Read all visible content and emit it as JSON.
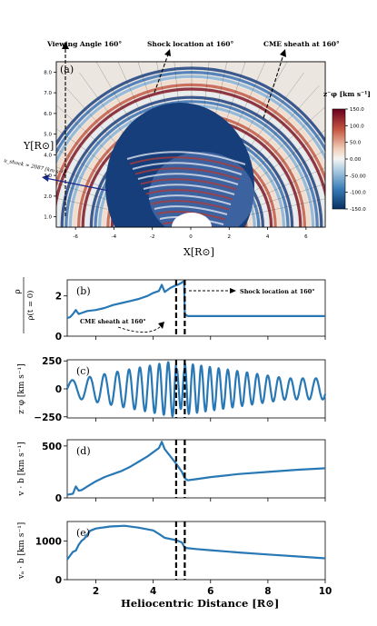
{
  "figure": {
    "top": {
      "panel_label": "(a)",
      "xlabel": "X[R⊙]",
      "ylabel": "Y[R⊙]",
      "xticks": [
        "-6",
        "-4",
        "-2",
        "0",
        "2",
        "4",
        "6"
      ],
      "yticks": [
        "1.0",
        "2.0",
        "3.0",
        "4.0",
        "5.0",
        "6.0",
        "7.0",
        "8.0"
      ],
      "colorbar_label": "z⁻φ [km s⁻¹]",
      "colorbar_ticks": [
        "150.0",
        "100.0",
        "50.0",
        "0.00",
        "-50.00",
        "-100.0",
        "-150.0"
      ],
      "annotations": {
        "viewing_angle": "Viewing Angle 160°",
        "shock_location": "Shock location at 160°",
        "cme_sheath": "CME sheath at 160°",
        "u_shock": "u_shock ≈ 2087 [km s⁻¹]"
      }
    },
    "bottom": {
      "xlabel": "Heliocentric Distance [R⊙]",
      "xticks": [
        "2",
        "4",
        "6",
        "8",
        "10"
      ],
      "panels": [
        {
          "label": "(b)",
          "ylabel_num": "ρ",
          "ylabel_den": "ρ(t = 0)",
          "yticks": [
            "0",
            "2"
          ],
          "ann_shock": "Shock location at 160°",
          "ann_sheath": "CME sheath at 160°"
        },
        {
          "label": "(c)",
          "ylabel": "z⁻φ [km s⁻¹]",
          "yticks": [
            "−250",
            "0",
            "250"
          ]
        },
        {
          "label": "(d)",
          "ylabel": "v · b [km s⁻¹]",
          "yticks": [
            "0",
            "500"
          ]
        },
        {
          "label": "(e)",
          "ylabel": "vₐ · b [km s⁻¹]",
          "yticks": [
            "0",
            "1000"
          ]
        }
      ]
    }
  },
  "chart_data": [
    {
      "type": "heatmap",
      "title": "",
      "xlabel": "X[R⊙]",
      "ylabel": "Y[R⊙]",
      "xlim": [
        -7,
        7
      ],
      "ylim": [
        0.5,
        8.5
      ],
      "colorbar": {
        "label": "z⁻φ [km s⁻¹]",
        "range": [
          -150,
          150
        ],
        "colormap": "blue-white-red"
      },
      "markers": {
        "viewing_angle_deg": 160,
        "shock_speed_km_s": 2087
      }
    },
    {
      "type": "line",
      "panel": "(b)",
      "xlim": [
        1,
        10
      ],
      "ylim": [
        0,
        2.8
      ],
      "ylabel": "ρ / ρ(t = 0)",
      "x": [
        1.0,
        1.1,
        1.2,
        1.3,
        1.4,
        1.5,
        1.7,
        2.0,
        2.3,
        2.6,
        2.9,
        3.2,
        3.5,
        3.8,
        4.0,
        4.2,
        4.3,
        4.4,
        4.5,
        4.6,
        4.75,
        4.85,
        4.95,
        5.05,
        5.08,
        5.1,
        5.2,
        5.5,
        6,
        7,
        8,
        9,
        10
      ],
      "series": [
        {
          "values": [
            0.9,
            0.95,
            1.1,
            1.3,
            1.1,
            1.15,
            1.25,
            1.3,
            1.4,
            1.55,
            1.65,
            1.75,
            1.85,
            2.0,
            2.15,
            2.25,
            2.55,
            2.2,
            2.3,
            2.4,
            2.5,
            2.55,
            2.62,
            2.72,
            2.7,
            1.1,
            1.0,
            1.0,
            1.0,
            1.0,
            1.0,
            1.0,
            1.0
          ]
        }
      ],
      "vlines": [
        4.8,
        5.1
      ]
    },
    {
      "type": "line",
      "panel": "(c)",
      "xlim": [
        1,
        10
      ],
      "ylim": [
        -260,
        260
      ],
      "ylabel": "z⁻φ [km s⁻¹]",
      "series": [
        {
          "name": "",
          "description": "oscillating wave, amplitude ~250 peaking near the shock, ~100 beyond 7 R⊙"
        }
      ],
      "vlines": [
        4.8,
        5.1
      ]
    },
    {
      "type": "line",
      "panel": "(d)",
      "xlim": [
        1,
        10
      ],
      "ylim": [
        0,
        560
      ],
      "ylabel": "v · b [km s⁻¹]",
      "x": [
        1.0,
        1.2,
        1.3,
        1.4,
        1.5,
        1.7,
        2.0,
        2.3,
        2.6,
        2.9,
        3.2,
        3.5,
        3.8,
        4.0,
        4.2,
        4.3,
        4.4,
        4.6,
        4.8,
        5.0,
        5.1,
        5.2,
        5.5,
        6,
        7,
        8,
        9,
        10
      ],
      "series": [
        {
          "values": [
            30,
            40,
            110,
            70,
            75,
            110,
            160,
            200,
            230,
            260,
            300,
            350,
            400,
            440,
            480,
            540,
            470,
            400,
            330,
            250,
            190,
            170,
            180,
            200,
            230,
            250,
            270,
            285
          ]
        }
      ],
      "vlines": [
        4.8,
        5.1
      ]
    },
    {
      "type": "line",
      "panel": "(e)",
      "xlim": [
        1,
        10
      ],
      "ylim": [
        0,
        1500
      ],
      "ylabel": "vₐ · b [km s⁻¹]",
      "x": [
        1.0,
        1.1,
        1.2,
        1.3,
        1.4,
        1.5,
        1.6,
        1.8,
        2.0,
        2.5,
        3.0,
        3.5,
        4.0,
        4.2,
        4.4,
        4.8,
        5.0,
        5.1,
        5.5,
        6,
        7,
        8,
        9,
        10
      ],
      "series": [
        {
          "values": [
            520,
            620,
            720,
            750,
            900,
            1000,
            1060,
            1260,
            1320,
            1370,
            1390,
            1340,
            1270,
            1180,
            1080,
            1020,
            960,
            820,
            790,
            760,
            700,
            650,
            600,
            550
          ]
        }
      ],
      "vlines": [
        4.8,
        5.1
      ]
    }
  ]
}
